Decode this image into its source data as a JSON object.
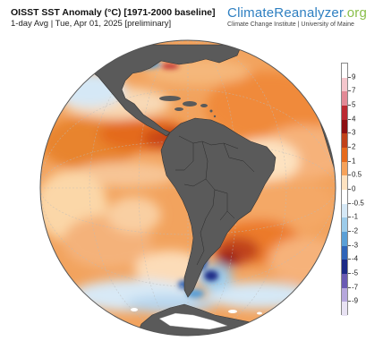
{
  "header": {
    "title": "OISST SST Anomaly (°C) [1971-2000 baseline]",
    "subtitle": "1-day Avg | Tue, Apr 01, 2025 [preliminary]"
  },
  "brand": {
    "name_main": "ClimateReanalyzer",
    "name_suffix": ".org",
    "tagline": "Climate Change Institute | University of Maine"
  },
  "map": {
    "ocean_base_color": "#f2a35e",
    "land_color": "#5a5a5a",
    "ice_color": "#ffffff",
    "graticule_color": "#bbbbbb"
  },
  "legend": {
    "ticks": [
      "9",
      "7",
      "5",
      "4",
      "3",
      "2",
      "1",
      "0.5",
      "0",
      "-0.5",
      "-1",
      "-2",
      "-3",
      "-4",
      "-5",
      "-7",
      "-9"
    ],
    "colors": [
      "#ffffff",
      "#f4c6cc",
      "#e28a96",
      "#bb2a32",
      "#8c0f12",
      "#c0421a",
      "#e66a1c",
      "#f6a25a",
      "#fde2c0",
      "#ffffff",
      "#d5e8f6",
      "#9ccbe9",
      "#5a9fd6",
      "#2f64b8",
      "#1c2a86",
      "#6a5ab3",
      "#b6a7dc",
      "#e8e2f3"
    ]
  }
}
